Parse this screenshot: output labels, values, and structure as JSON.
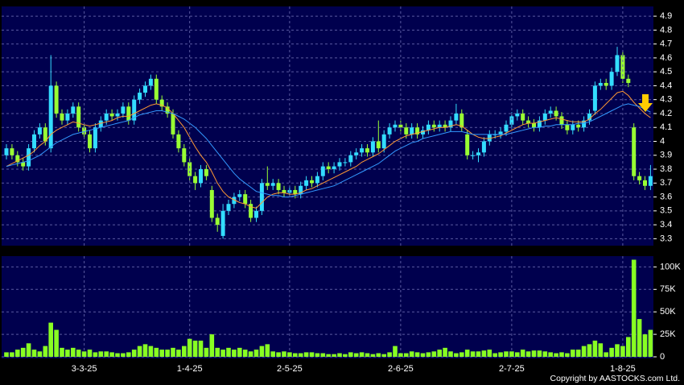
{
  "chart_data": [
    {
      "type": "candlestick",
      "open": [
        3.9,
        3.95,
        3.9,
        3.85,
        3.82,
        3.95,
        4.05,
        4.1,
        3.95,
        4.4,
        4.2,
        4.15,
        4.2,
        4.25,
        4.1,
        4.05,
        3.95,
        4.1,
        4.15,
        4.2,
        4.18,
        4.2,
        4.25,
        4.15,
        4.3,
        4.35,
        4.4,
        4.45,
        4.3,
        4.25,
        4.2,
        4.05,
        3.95,
        3.85,
        3.75,
        3.7,
        3.8,
        3.65,
        3.45,
        3.32,
        3.5,
        3.55,
        3.6,
        3.62,
        3.55,
        3.45,
        3.5,
        3.7,
        3.68,
        3.7,
        3.65,
        3.63,
        3.65,
        3.62,
        3.68,
        3.72,
        3.7,
        3.75,
        3.82,
        3.8,
        3.82,
        3.85,
        3.85,
        3.9,
        3.92,
        3.95,
        3.92,
        4.0,
        3.95,
        4.05,
        4.1,
        4.12,
        4.1,
        4.05,
        4.1,
        4.05,
        4.08,
        4.12,
        4.1,
        4.12,
        4.1,
        4.15,
        4.2,
        4.05,
        3.9,
        3.9,
        3.92,
        4.0,
        4.05,
        4.05,
        4.07,
        4.12,
        4.18,
        4.2,
        4.15,
        4.13,
        4.1,
        4.15,
        4.2,
        4.22,
        4.18,
        4.12,
        4.08,
        4.12,
        4.1,
        4.15,
        4.22,
        4.4,
        4.42,
        4.4,
        4.5,
        4.62,
        4.45,
        4.1,
        3.75,
        3.72,
        3.68
      ],
      "high": [
        3.98,
        3.98,
        3.93,
        3.88,
        3.98,
        4.08,
        4.13,
        4.13,
        4.62,
        4.43,
        4.23,
        4.23,
        4.28,
        4.28,
        4.13,
        4.08,
        4.13,
        4.18,
        4.23,
        4.23,
        4.23,
        4.28,
        4.28,
        4.33,
        4.38,
        4.43,
        4.48,
        4.48,
        4.33,
        4.28,
        4.23,
        4.08,
        3.98,
        3.88,
        3.78,
        3.83,
        3.83,
        3.68,
        3.48,
        3.55,
        3.58,
        3.63,
        3.65,
        3.65,
        3.58,
        3.53,
        3.73,
        3.82,
        3.73,
        3.73,
        3.68,
        3.68,
        3.68,
        3.71,
        3.75,
        3.75,
        3.78,
        3.85,
        3.85,
        3.85,
        3.88,
        3.88,
        3.93,
        3.95,
        3.98,
        3.98,
        4.03,
        4.15,
        4.08,
        4.13,
        4.15,
        4.15,
        4.13,
        4.13,
        4.13,
        4.11,
        4.15,
        4.15,
        4.15,
        4.15,
        4.18,
        4.27,
        4.23,
        4.08,
        3.93,
        3.95,
        4.03,
        4.08,
        4.08,
        4.1,
        4.15,
        4.21,
        4.23,
        4.23,
        4.18,
        4.16,
        4.18,
        4.23,
        4.25,
        4.25,
        4.21,
        4.15,
        4.15,
        4.15,
        4.18,
        4.23,
        4.43,
        4.45,
        4.45,
        4.53,
        4.68,
        4.65,
        4.48,
        4.13,
        3.78,
        3.75,
        3.83
      ],
      "low": [
        3.87,
        3.87,
        3.82,
        3.79,
        3.79,
        3.92,
        4.02,
        3.97,
        3.92,
        4.17,
        4.12,
        4.12,
        4.17,
        4.07,
        4.02,
        3.92,
        3.92,
        4.07,
        4.12,
        4.15,
        4.15,
        4.17,
        4.12,
        4.12,
        4.27,
        4.32,
        4.37,
        4.27,
        4.22,
        4.17,
        4.02,
        3.92,
        3.82,
        3.72,
        3.65,
        3.67,
        3.72,
        3.42,
        3.35,
        3.3,
        3.47,
        3.52,
        3.57,
        3.52,
        3.42,
        3.42,
        3.47,
        3.65,
        3.65,
        3.62,
        3.6,
        3.6,
        3.59,
        3.59,
        3.65,
        3.67,
        3.67,
        3.72,
        3.77,
        3.77,
        3.79,
        3.82,
        3.82,
        3.87,
        3.89,
        3.89,
        3.89,
        3.92,
        3.92,
        4.02,
        4.07,
        4.07,
        4.02,
        4.02,
        4.02,
        4.02,
        4.05,
        4.07,
        4.07,
        4.07,
        4.07,
        4.12,
        4.07,
        3.87,
        3.87,
        3.85,
        3.89,
        3.97,
        4.02,
        4.02,
        4.04,
        4.09,
        4.15,
        4.12,
        4.1,
        4.07,
        4.07,
        4.12,
        4.17,
        4.15,
        4.09,
        4.05,
        4.05,
        4.07,
        4.07,
        4.12,
        4.19,
        4.37,
        4.37,
        4.37,
        4.47,
        4.42,
        4.39,
        3.72,
        3.69,
        3.65,
        3.65
      ],
      "close": [
        3.95,
        3.9,
        3.85,
        3.82,
        3.95,
        4.05,
        4.1,
        4.0,
        4.4,
        4.2,
        4.15,
        4.2,
        4.25,
        4.1,
        4.05,
        3.95,
        4.1,
        4.15,
        4.2,
        4.18,
        4.2,
        4.25,
        4.15,
        4.3,
        4.35,
        4.4,
        4.45,
        4.3,
        4.25,
        4.2,
        4.05,
        3.95,
        3.85,
        3.75,
        3.7,
        3.8,
        3.75,
        3.45,
        3.4,
        3.5,
        3.55,
        3.6,
        3.62,
        3.55,
        3.45,
        3.5,
        3.7,
        3.68,
        3.7,
        3.65,
        3.63,
        3.65,
        3.62,
        3.68,
        3.72,
        3.7,
        3.75,
        3.82,
        3.8,
        3.82,
        3.85,
        3.85,
        3.9,
        3.92,
        3.95,
        3.92,
        4.0,
        3.95,
        4.05,
        4.1,
        4.12,
        4.1,
        4.05,
        4.1,
        4.05,
        4.08,
        4.12,
        4.1,
        4.12,
        4.1,
        4.15,
        4.2,
        4.1,
        3.9,
        3.9,
        3.92,
        4.0,
        4.05,
        4.05,
        4.07,
        4.12,
        4.18,
        4.2,
        4.15,
        4.13,
        4.1,
        4.15,
        4.2,
        4.22,
        4.18,
        4.12,
        4.08,
        4.12,
        4.1,
        4.15,
        4.2,
        4.4,
        4.42,
        4.4,
        4.5,
        4.62,
        4.45,
        4.42,
        3.75,
        3.72,
        3.68,
        3.75
      ],
      "up_color": "#33ddff",
      "down_color": "#99ff33",
      "series": [
        {
          "color": "#ff9933",
          "values": [
            3.82,
            3.84,
            3.86,
            3.88,
            3.9,
            3.93,
            3.97,
            4.0,
            4.05,
            4.08,
            4.1,
            4.12,
            4.14,
            4.13,
            4.12,
            4.11,
            4.12,
            4.13,
            4.14,
            4.15,
            4.17,
            4.18,
            4.18,
            4.2,
            4.22,
            4.24,
            4.26,
            4.27,
            4.26,
            4.24,
            4.2,
            4.15,
            4.1,
            4.03,
            3.96,
            3.9,
            3.85,
            3.78,
            3.7,
            3.64,
            3.6,
            3.58,
            3.56,
            3.55,
            3.53,
            3.52,
            3.56,
            3.6,
            3.62,
            3.63,
            3.63,
            3.62,
            3.62,
            3.63,
            3.65,
            3.66,
            3.68,
            3.7,
            3.72,
            3.74,
            3.76,
            3.78,
            3.8,
            3.82,
            3.85,
            3.87,
            3.89,
            3.91,
            3.94,
            3.97,
            4.0,
            4.02,
            4.04,
            4.05,
            4.06,
            4.07,
            4.08,
            4.09,
            4.1,
            4.1,
            4.11,
            4.12,
            4.11,
            4.08,
            4.05,
            4.03,
            4.02,
            4.02,
            4.03,
            4.04,
            4.06,
            4.08,
            4.1,
            4.12,
            4.13,
            4.13,
            4.14,
            4.15,
            4.16,
            4.17,
            4.16,
            4.15,
            4.14,
            4.14,
            4.14,
            4.16,
            4.2,
            4.23,
            4.27,
            4.31,
            4.35,
            4.36,
            4.33,
            4.28,
            4.24,
            4.2,
            4.17
          ]
        },
        {
          "color": "#3399ff",
          "values": [
            3.82,
            3.83,
            3.84,
            3.85,
            3.86,
            3.88,
            3.9,
            3.93,
            3.96,
            3.99,
            4.01,
            4.03,
            4.05,
            4.06,
            4.07,
            4.08,
            4.09,
            4.1,
            4.11,
            4.12,
            4.13,
            4.14,
            4.15,
            4.17,
            4.19,
            4.2,
            4.21,
            4.22,
            4.22,
            4.21,
            4.2,
            4.18,
            4.16,
            4.13,
            4.1,
            4.06,
            4.02,
            3.97,
            3.92,
            3.87,
            3.82,
            3.77,
            3.73,
            3.7,
            3.67,
            3.64,
            3.63,
            3.62,
            3.61,
            3.61,
            3.6,
            3.6,
            3.61,
            3.62,
            3.63,
            3.64,
            3.65,
            3.66,
            3.67,
            3.68,
            3.7,
            3.72,
            3.74,
            3.76,
            3.78,
            3.8,
            3.82,
            3.84,
            3.87,
            3.9,
            3.93,
            3.95,
            3.97,
            3.99,
            4.0,
            4.02,
            4.03,
            4.04,
            4.05,
            4.06,
            4.07,
            4.07,
            4.07,
            4.06,
            4.05,
            4.05,
            4.05,
            4.05,
            4.05,
            4.05,
            4.05,
            4.06,
            4.07,
            4.08,
            4.09,
            4.1,
            4.1,
            4.11,
            4.11,
            4.12,
            4.12,
            4.12,
            4.12,
            4.13,
            4.13,
            4.14,
            4.16,
            4.18,
            4.2,
            4.22,
            4.24,
            4.26,
            4.27,
            4.26,
            4.25,
            4.23,
            4.21
          ]
        }
      ],
      "ylim": [
        3.25,
        4.97
      ],
      "yticks": [
        3.3,
        3.4,
        3.5,
        3.6,
        3.7,
        3.8,
        3.9,
        4,
        4.1,
        4.2,
        4.3,
        4.4,
        4.5,
        4.6,
        4.7,
        4.8,
        4.9
      ],
      "grid": true
    },
    {
      "type": "bar",
      "categories": [
        null,
        null,
        null,
        null,
        null,
        null,
        null,
        null,
        null,
        null,
        null,
        null,
        null,
        null,
        "3-3-25",
        null,
        null,
        null,
        null,
        null,
        null,
        null,
        null,
        null,
        null,
        null,
        null,
        null,
        null,
        null,
        null,
        null,
        null,
        "1-4-25",
        null,
        null,
        null,
        null,
        null,
        null,
        null,
        null,
        null,
        null,
        null,
        null,
        null,
        null,
        null,
        null,
        null,
        "2-5-25",
        null,
        null,
        null,
        null,
        null,
        null,
        null,
        null,
        null,
        null,
        null,
        null,
        null,
        null,
        null,
        null,
        null,
        null,
        null,
        "2-6-25",
        null,
        null,
        null,
        null,
        null,
        null,
        null,
        null,
        null,
        null,
        null,
        null,
        null,
        null,
        null,
        null,
        null,
        null,
        null,
        "2-7-25",
        null,
        null,
        null,
        null,
        null,
        null,
        null,
        null,
        null,
        null,
        null,
        null,
        null,
        null,
        null,
        null,
        null,
        null,
        null,
        "1-8-25",
        null,
        null,
        null,
        null,
        null
      ],
      "values": [
        5000,
        5000,
        8000,
        10000,
        15000,
        8000,
        6000,
        12000,
        38000,
        30000,
        10000,
        8000,
        10000,
        8000,
        6000,
        8000,
        5000,
        6000,
        6000,
        5000,
        4000,
        4000,
        5000,
        8000,
        12000,
        14000,
        12000,
        10000,
        8000,
        8000,
        10000,
        8000,
        12000,
        20000,
        18000,
        18000,
        10000,
        25000,
        10000,
        8000,
        10000,
        8000,
        10000,
        8000,
        6000,
        8000,
        12000,
        14000,
        6000,
        5000,
        6000,
        5000,
        4000,
        4000,
        5000,
        5000,
        4000,
        4000,
        3000,
        3000,
        4000,
        3000,
        5000,
        4000,
        5000,
        4000,
        3000,
        4000,
        3000,
        5000,
        12000,
        4000,
        4000,
        6000,
        5000,
        4000,
        5000,
        6000,
        8000,
        10000,
        6000,
        4000,
        5000,
        8000,
        6000,
        6000,
        7000,
        8000,
        4000,
        5000,
        6000,
        6000,
        5000,
        8000,
        6000,
        7000,
        7000,
        6000,
        5000,
        4000,
        5000,
        4000,
        8000,
        8000,
        12000,
        14000,
        18000,
        15000,
        5000,
        10000,
        14000,
        12000,
        22000,
        108000,
        42000,
        25000,
        30000
      ],
      "color": "#88ff22",
      "ylim": [
        0,
        112000
      ],
      "yticks": [
        0,
        {
          "value": 25000,
          "label": "25K"
        },
        {
          "value": 50000,
          "label": "50K"
        },
        {
          "value": 75000,
          "label": "75K"
        },
        {
          "value": 100000,
          "label": "100K"
        }
      ],
      "grid": true
    }
  ],
  "copyright": "Copyright by AASTOCKS.com Ltd."
}
